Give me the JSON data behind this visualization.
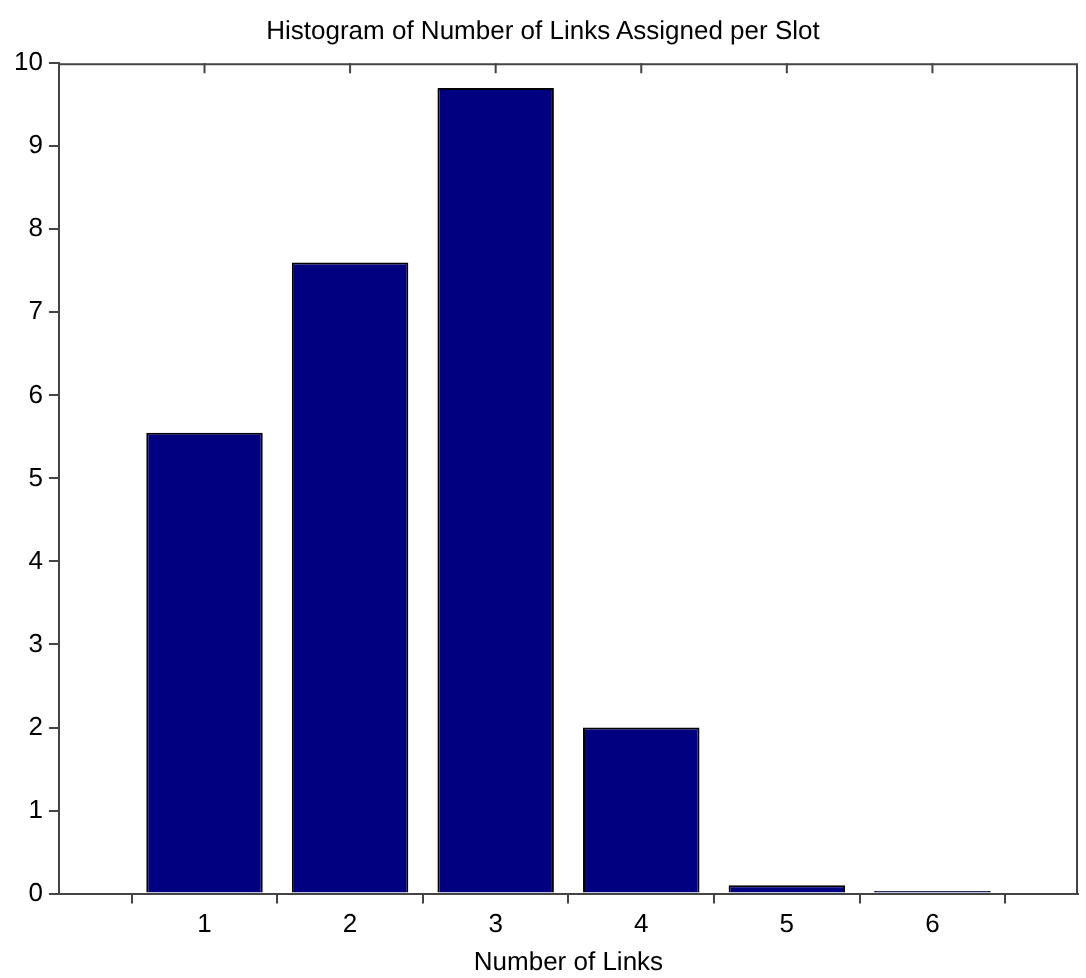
{
  "chart_data": {
    "type": "bar",
    "title": "Histogram of Number of Links Assigned per Slot",
    "xlabel": "Number of Links",
    "x": [
      1,
      2,
      3,
      4,
      5,
      6
    ],
    "values": [
      5.55,
      7.6,
      9.7,
      2.0,
      0.1,
      0.03
    ],
    "color": "#000080",
    "xlim": [
      0,
      7
    ],
    "xticks": [
      1,
      2,
      3,
      4,
      5,
      6
    ],
    "ylim": [
      0,
      10
    ],
    "yticks": [
      0,
      1,
      2,
      3,
      4,
      5,
      6,
      7,
      8,
      9,
      10
    ],
    "grid": false,
    "legend": false
  }
}
